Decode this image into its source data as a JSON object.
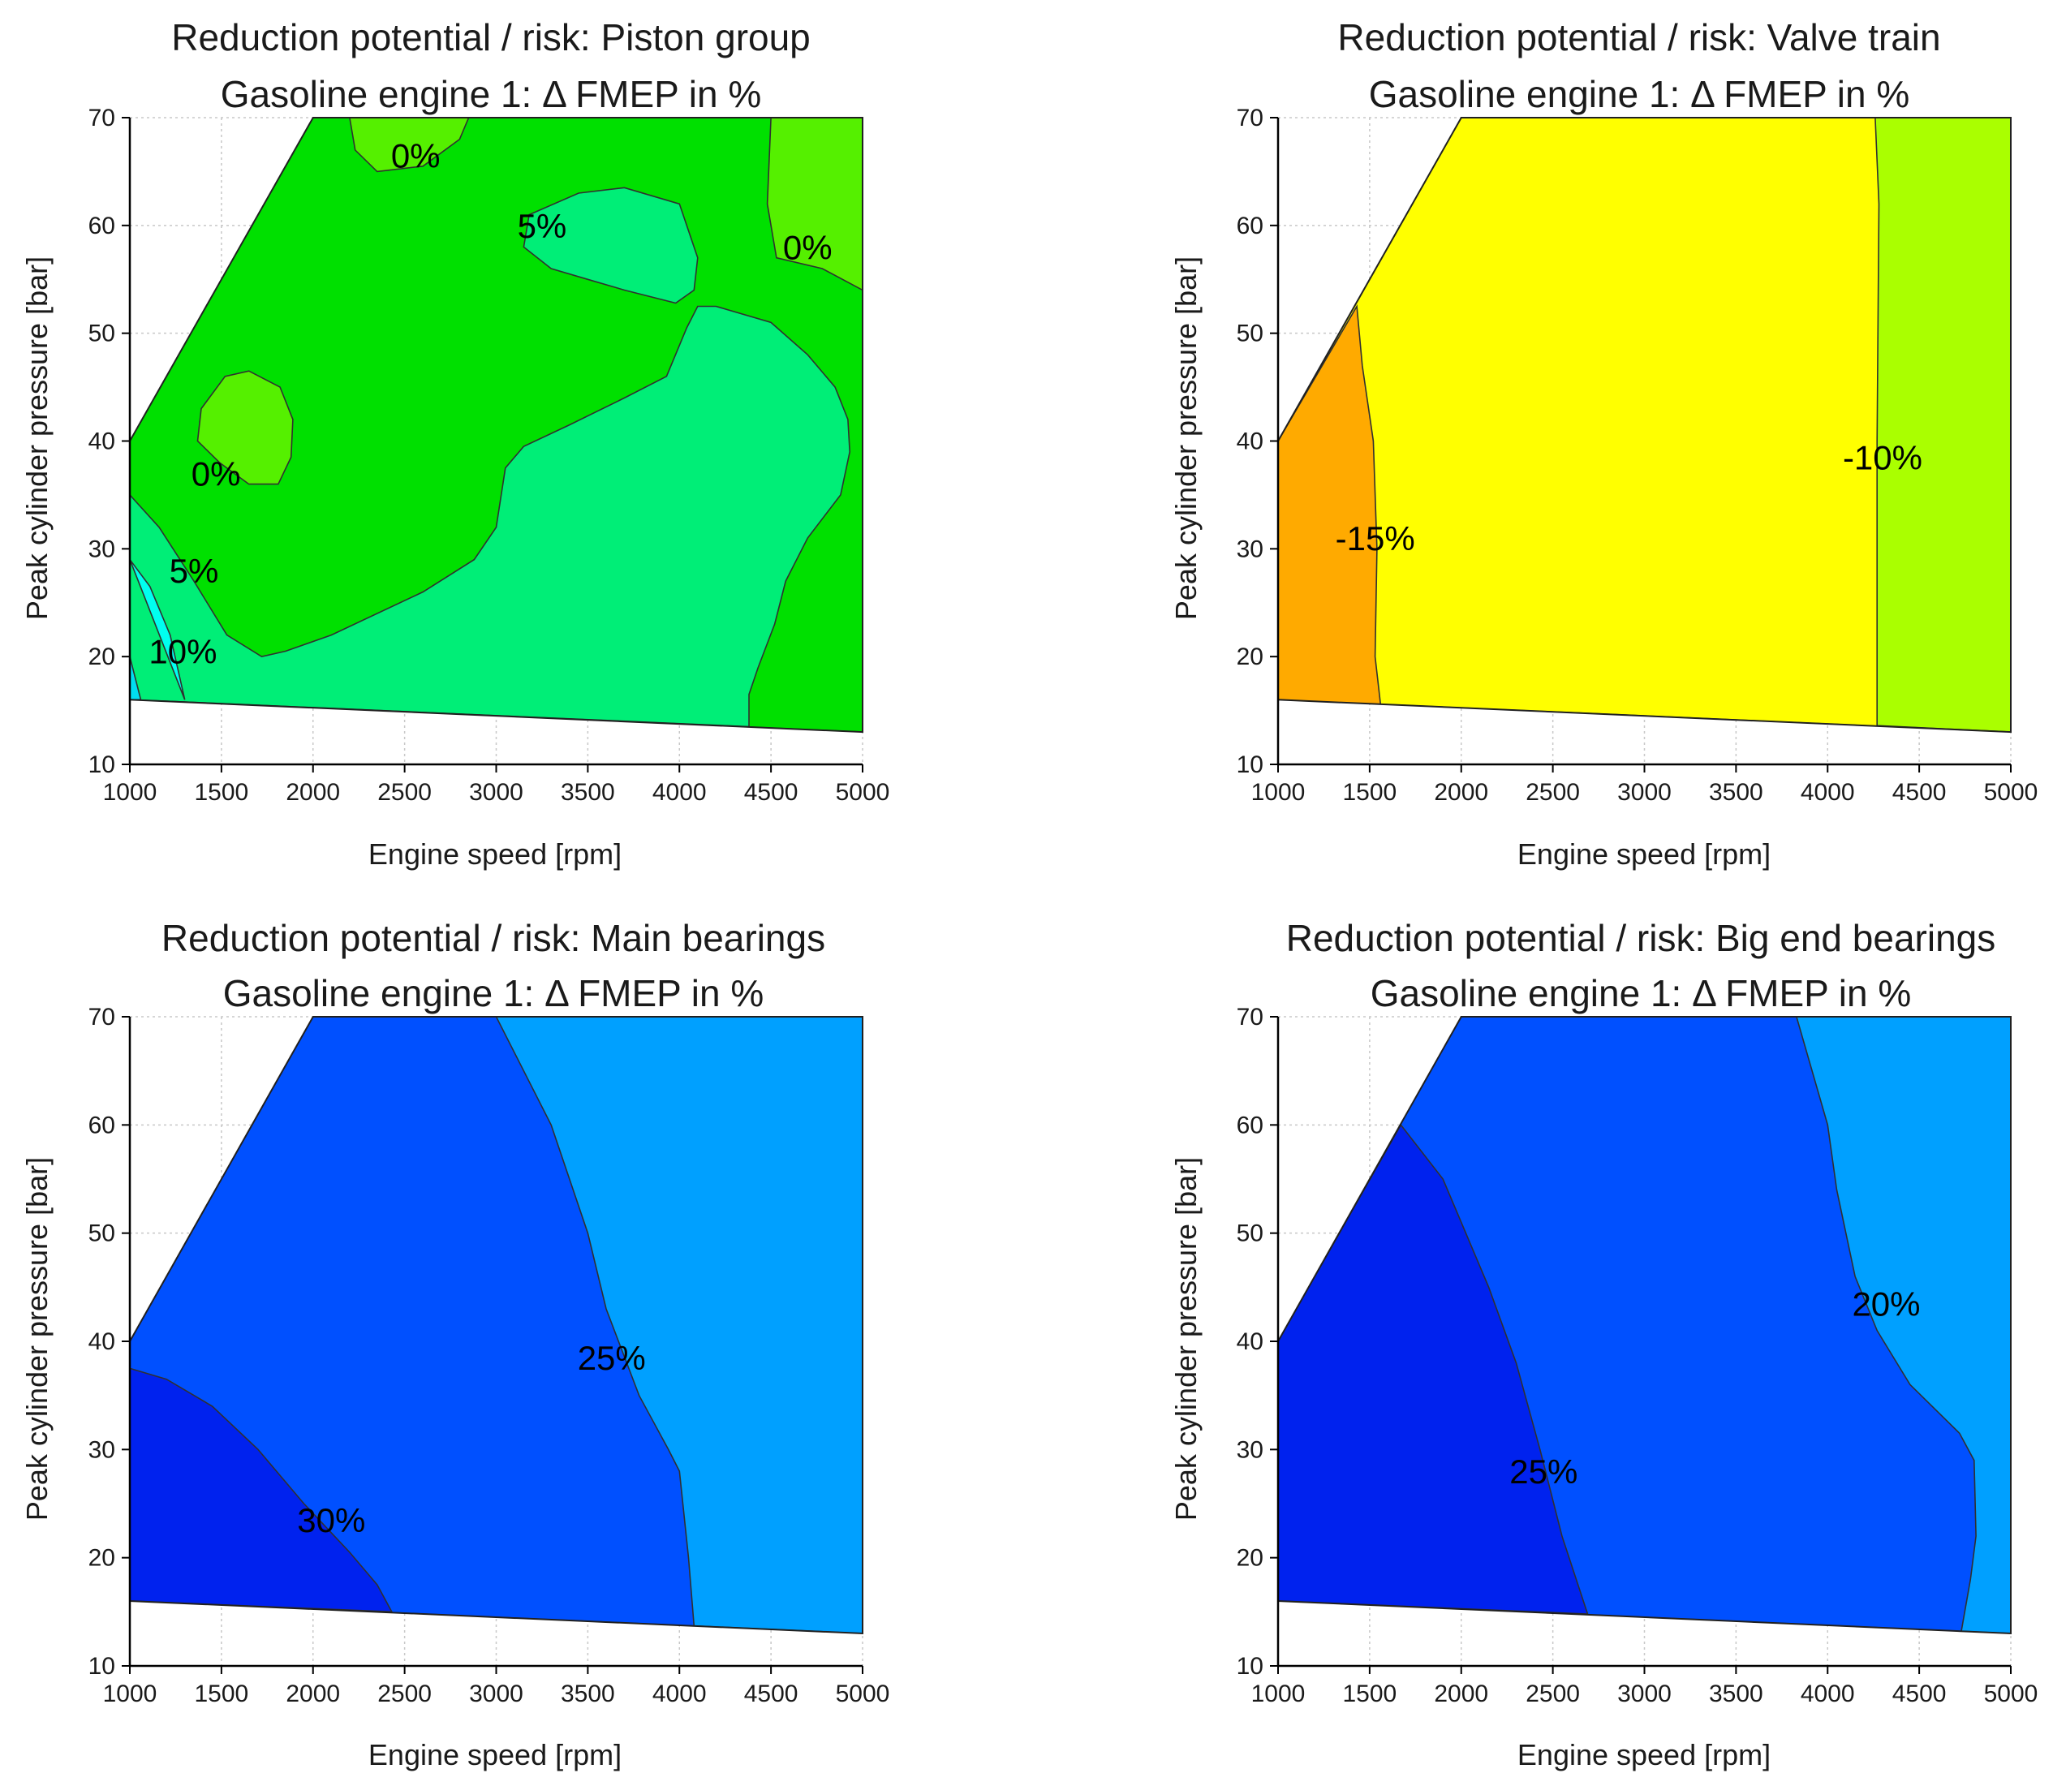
{
  "chart_data": [
    {
      "type": "contour",
      "title": "Reduction potential / risk: Piston group",
      "subtitle": "Gasoline engine 1: Δ FMEP in %",
      "xlabel": "Engine speed [rpm]",
      "ylabel": "Peak cylinder pressure [bar]",
      "xlim": [
        1000,
        5000
      ],
      "ylim": [
        10,
        70
      ],
      "xticks": [
        "1000",
        "1500",
        "2000",
        "2500",
        "3000",
        "3500",
        "4000",
        "4500",
        "5000"
      ],
      "yticks": [
        "10",
        "20",
        "30",
        "40",
        "50",
        "60",
        "70"
      ],
      "grid": true,
      "domain": [
        [
          1000,
          16
        ],
        [
          1000,
          40
        ],
        [
          2000,
          70
        ],
        [
          5000,
          70
        ],
        [
          5000,
          13
        ]
      ],
      "regions": [
        {
          "level": "background",
          "color": "#00e000",
          "points": [
            [
              1000,
              16
            ],
            [
              1000,
              40
            ],
            [
              2000,
              70
            ],
            [
              5000,
              70
            ],
            [
              5000,
              13
            ]
          ]
        },
        {
          "level": "0%",
          "color": "#55f000",
          "points": [
            [
              2200,
              70
            ],
            [
              2230,
              67
            ],
            [
              2350,
              65
            ],
            [
              2600,
              65.5
            ],
            [
              2800,
              68
            ],
            [
              2850,
              70
            ]
          ]
        },
        {
          "level": "0%",
          "color": "#55f000",
          "points": [
            [
              4500,
              70
            ],
            [
              4480,
              62
            ],
            [
              4530,
              57
            ],
            [
              4780,
              56
            ],
            [
              5000,
              54
            ],
            [
              5000,
              70
            ]
          ]
        },
        {
          "level": "0%",
          "color": "#55f000",
          "points": [
            [
              1650,
              36
            ],
            [
              1810,
              36
            ],
            [
              1880,
              38.5
            ],
            [
              1890,
              42
            ],
            [
              1820,
              45
            ],
            [
              1650,
              46.5
            ],
            [
              1520,
              46
            ],
            [
              1390,
              43
            ],
            [
              1370,
              40
            ],
            [
              1490,
              38
            ]
          ]
        },
        {
          "level": "5%",
          "color": "#00ee77",
          "points": [
            [
              1000,
              35
            ],
            [
              1160,
              32
            ],
            [
              1350,
              27
            ],
            [
              1530,
              22
            ],
            [
              1720,
              20
            ],
            [
              1850,
              20.5
            ],
            [
              2100,
              22
            ],
            [
              2600,
              26
            ],
            [
              2880,
              29
            ],
            [
              3000,
              32
            ],
            [
              3050,
              37.5
            ],
            [
              3150,
              39.5
            ],
            [
              3400,
              41.5
            ],
            [
              3700,
              44
            ],
            [
              3930,
              46
            ],
            [
              4040,
              50.5
            ],
            [
              4100,
              52.5
            ],
            [
              4200,
              52.5
            ],
            [
              4500,
              51
            ],
            [
              4700,
              48
            ],
            [
              4850,
              45
            ],
            [
              4920,
              42
            ],
            [
              4930,
              39
            ],
            [
              4880,
              35
            ],
            [
              4700,
              31
            ],
            [
              4580,
              27
            ],
            [
              4520,
              23
            ],
            [
              4430,
              19
            ],
            [
              4380,
              16.5
            ],
            [
              4380,
              13.5
            ],
            [
              1300,
              15.8
            ],
            [
              1000,
              16
            ]
          ]
        },
        {
          "level": "5%",
          "color": "#00ee77",
          "points": [
            [
              3150,
              58
            ],
            [
              3180,
              61
            ],
            [
              3450,
              63
            ],
            [
              3700,
              63.5
            ],
            [
              4000,
              62
            ],
            [
              4100,
              57
            ],
            [
              4080,
              54
            ],
            [
              3980,
              52.8
            ],
            [
              3700,
              54
            ],
            [
              3500,
              55
            ],
            [
              3300,
              56
            ]
          ]
        },
        {
          "level": "10%",
          "color": "#00fff0",
          "points": [
            [
              1000,
              29
            ],
            [
              1110,
              26.5
            ],
            [
              1220,
              22
            ],
            [
              1300,
              16
            ]
          ]
        },
        {
          "level": "10%",
          "color": "#00ddf0",
          "points": [
            [
              1000,
              16
            ],
            [
              1000,
              20
            ],
            [
              1060,
              16
            ]
          ]
        }
      ],
      "labels": [
        {
          "text": "0%",
          "x": 2560,
          "y": 66.5
        },
        {
          "text": "5%",
          "x": 3250,
          "y": 60
        },
        {
          "text": "0%",
          "x": 4700,
          "y": 58
        },
        {
          "text": "0%",
          "x": 1470,
          "y": 37
        },
        {
          "text": "5%",
          "x": 1350,
          "y": 28
        },
        {
          "text": "10%",
          "x": 1290,
          "y": 20.5
        }
      ]
    },
    {
      "type": "contour",
      "title": "Reduction potential / risk: Valve train",
      "subtitle": "Gasoline engine 1: Δ FMEP in %",
      "xlabel": "Engine speed [rpm]",
      "ylabel": "Peak cylinder pressure [bar]",
      "xlim": [
        1000,
        5000
      ],
      "ylim": [
        10,
        70
      ],
      "xticks": [
        "1000",
        "1500",
        "2000",
        "2500",
        "3000",
        "3500",
        "4000",
        "4500",
        "5000"
      ],
      "yticks": [
        "10",
        "20",
        "30",
        "40",
        "50",
        "60",
        "70"
      ],
      "grid": true,
      "regions": [
        {
          "level": "background",
          "color": "#ffff00",
          "points": [
            [
              1000,
              16
            ],
            [
              1000,
              40
            ],
            [
              2000,
              70
            ],
            [
              5000,
              70
            ],
            [
              5000,
              13
            ]
          ]
        },
        {
          "level": "-15%",
          "color": "#ffaa00",
          "points": [
            [
              1000,
              16
            ],
            [
              1000,
              40
            ],
            [
              1430,
              52.5
            ],
            [
              1460,
              47
            ],
            [
              1520,
              40
            ],
            [
              1540,
              30
            ],
            [
              1530,
              20
            ],
            [
              1560,
              15.5
            ]
          ]
        },
        {
          "level": "-10%",
          "color": "#aaff00",
          "points": [
            [
              4260,
              70
            ],
            [
              4280,
              62
            ],
            [
              4270,
              40
            ],
            [
              4270,
              13.6
            ],
            [
              5000,
              13
            ],
            [
              5000,
              70
            ]
          ]
        }
      ],
      "labels": [
        {
          "text": "-15%",
          "x": 1530,
          "y": 31
        },
        {
          "text": "-10%",
          "x": 4300,
          "y": 38.5
        }
      ]
    },
    {
      "type": "contour",
      "title": "Reduction potential / risk: Main bearings",
      "subtitle": "Gasoline engine 1: Δ FMEP in %",
      "xlabel": "Engine speed [rpm]",
      "ylabel": "Peak cylinder pressure [bar]",
      "xlim": [
        1000,
        5000
      ],
      "ylim": [
        10,
        70
      ],
      "xticks": [
        "1000",
        "1500",
        "2000",
        "2500",
        "3000",
        "3500",
        "4000",
        "4500",
        "5000"
      ],
      "yticks": [
        "10",
        "20",
        "30",
        "40",
        "50",
        "60",
        "70"
      ],
      "grid": true,
      "regions": [
        {
          "level": "background",
          "color": "#0050ff",
          "points": [
            [
              1000,
              16
            ],
            [
              1000,
              40
            ],
            [
              2000,
              70
            ],
            [
              5000,
              70
            ],
            [
              5000,
              13
            ]
          ]
        },
        {
          "level": "30%",
          "color": "#0022ee",
          "points": [
            [
              1000,
              16
            ],
            [
              1000,
              37.5
            ],
            [
              1200,
              36.5
            ],
            [
              1450,
              34
            ],
            [
              1700,
              30
            ],
            [
              1950,
              25
            ],
            [
              2200,
              20.5
            ],
            [
              2350,
              17.5
            ],
            [
              2430,
              15
            ]
          ]
        },
        {
          "level": "20%",
          "color": "#00a0ff",
          "points": [
            [
              3000,
              70
            ],
            [
              3300,
              60
            ],
            [
              3400,
              55
            ],
            [
              3500,
              50
            ],
            [
              3600,
              43
            ],
            [
              3780,
              35
            ],
            [
              3940,
              30
            ],
            [
              4000,
              28
            ],
            [
              4050,
              20
            ],
            [
              4080,
              13.7
            ],
            [
              5000,
              13
            ],
            [
              5000,
              70
            ]
          ]
        }
      ],
      "labels": [
        {
          "text": "30%",
          "x": 2100,
          "y": 23.5
        },
        {
          "text": "25%",
          "x": 3630,
          "y": 38.5
        }
      ]
    },
    {
      "type": "contour",
      "title": "Reduction potential / risk: Big end bearings",
      "subtitle": "Gasoline engine 1: Δ FMEP in %",
      "xlabel": "Engine speed [rpm]",
      "ylabel": "Peak cylinder pressure [bar]",
      "xlim": [
        1000,
        5000
      ],
      "ylim": [
        10,
        70
      ],
      "xticks": [
        "1000",
        "1500",
        "2000",
        "2500",
        "3000",
        "3500",
        "4000",
        "4500",
        "5000"
      ],
      "yticks": [
        "10",
        "20",
        "30",
        "40",
        "50",
        "60",
        "70"
      ],
      "grid": true,
      "regions": [
        {
          "level": "background",
          "color": "#0050ff",
          "points": [
            [
              1000,
              16
            ],
            [
              1000,
              40
            ],
            [
              2000,
              70
            ],
            [
              5000,
              70
            ],
            [
              5000,
              13
            ]
          ]
        },
        {
          "level": "25%",
          "color": "#0022ee",
          "points": [
            [
              1000,
              16
            ],
            [
              1000,
              40
            ],
            [
              1670,
              60
            ],
            [
              1900,
              55
            ],
            [
              2150,
              45
            ],
            [
              2300,
              38
            ],
            [
              2430,
              30
            ],
            [
              2550,
              22
            ],
            [
              2690,
              14.8
            ]
          ]
        },
        {
          "level": "20%",
          "color": "#00a0ff",
          "points": [
            [
              3830,
              70
            ],
            [
              4000,
              60
            ],
            [
              4050,
              54
            ],
            [
              4150,
              46
            ],
            [
              4270,
              41
            ],
            [
              4450,
              36
            ],
            [
              4720,
              31.5
            ],
            [
              4800,
              29
            ],
            [
              4810,
              22
            ],
            [
              4780,
              18
            ],
            [
              4730,
              13.2
            ],
            [
              5000,
              13
            ],
            [
              5000,
              70
            ]
          ]
        }
      ],
      "labels": [
        {
          "text": "25%",
          "x": 2450,
          "y": 28
        },
        {
          "text": "20%",
          "x": 4320,
          "y": 43.5
        }
      ]
    }
  ]
}
